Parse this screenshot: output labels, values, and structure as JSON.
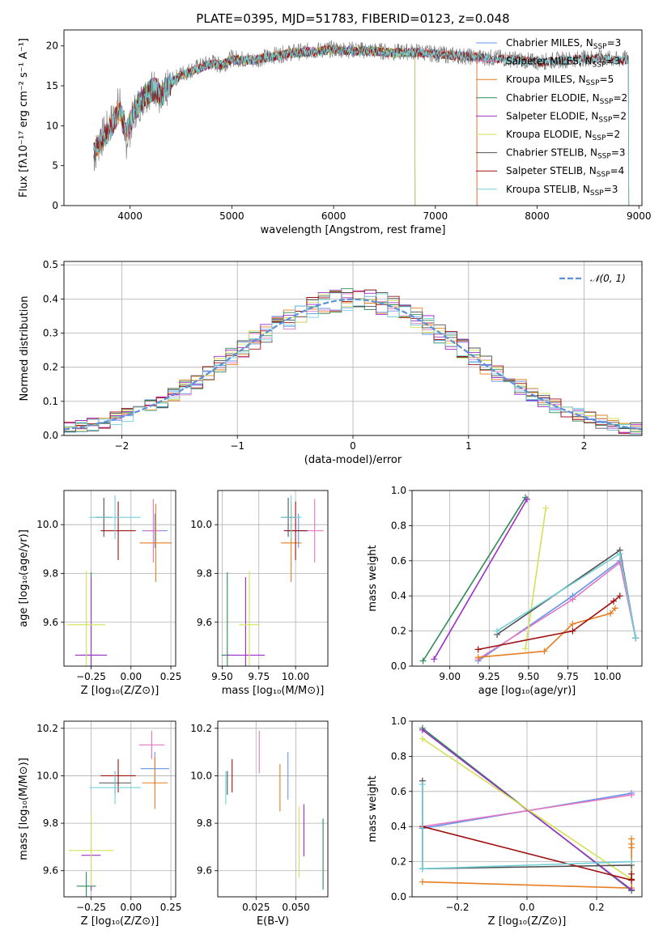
{
  "colors": {
    "Chabrier MILES": "#6495ed",
    "Salpeter MILES": "#e377c2",
    "Kroupa MILES": "#e67e22",
    "Chabrier ELODIE": "#2e8b57",
    "Salpeter ELODIE": "#9b30c8",
    "Kroupa ELODIE": "#d4e157",
    "Chabrier STELIB": "#505050",
    "Salpeter STELIB": "#a01010",
    "Kroupa STELIB": "#70d0d8"
  },
  "chart_data": [
    {
      "id": "spectrum",
      "type": "line",
      "title": "PLATE=0395, MJD=51783, FIBERID=0123, z=0.048",
      "xlabel": "wavelength [Angstrom, rest frame]",
      "ylabel": "Flux [fλ10⁻¹⁷ erg cm⁻² s⁻¹ A⁻¹]",
      "xlim": [
        3350,
        9030
      ],
      "ylim": [
        0,
        22
      ],
      "xticks": [
        4000,
        5000,
        6000,
        7000,
        8000,
        9000
      ],
      "yticks": [
        0,
        5,
        10,
        15,
        20
      ],
      "legend_position": "top-right",
      "data_series": {
        "name": "data",
        "color": "#808080",
        "x": [
          3640,
          3700,
          3800,
          3900,
          3960,
          4050,
          4150,
          4250,
          4300,
          4400,
          4500,
          4600,
          4700,
          4800,
          4900,
          5000,
          5200,
          5400,
          5600,
          5800,
          6000,
          6200,
          6400,
          6600,
          6800,
          7000,
          7200,
          7400,
          7600,
          7800,
          8000,
          8200,
          8400,
          8600,
          8800,
          8900
        ],
        "y": [
          6,
          8,
          10,
          13,
          8,
          12,
          14,
          15,
          13,
          15.5,
          16.5,
          17,
          17.5,
          18,
          17.5,
          18.5,
          18.2,
          18.8,
          19.2,
          19.4,
          19.6,
          19.5,
          19.4,
          19.2,
          19.3,
          19.0,
          18.8,
          18.6,
          18.5,
          18.3,
          18.0,
          18.2,
          18.4,
          18.6,
          18.2,
          18.5
        ]
      },
      "model_x": [
        3640,
        3700,
        3800,
        3900,
        3960,
        4050,
        4150,
        4250,
        4300,
        4400,
        4500,
        4600,
        4700,
        4800,
        4900,
        5000,
        5200,
        5400,
        5600,
        5800,
        6000,
        6200,
        6400,
        6600,
        6800,
        7000,
        7200,
        7400,
        7600,
        7800,
        8000,
        8200,
        8400,
        8600,
        8800,
        8900
      ],
      "model_y": [
        6.5,
        8,
        9.5,
        12,
        9,
        12,
        13.8,
        14.8,
        13.5,
        15.3,
        16.3,
        16.8,
        17.3,
        17.8,
        17.6,
        18.3,
        18.2,
        18.7,
        19.1,
        19.3,
        19.5,
        19.4,
        19.3,
        19.1,
        19.2,
        19.0,
        18.8,
        18.6,
        18.4,
        18.2,
        18.0,
        18.1,
        18.3,
        18.4,
        18.2,
        18.3
      ],
      "series": [
        {
          "name": "Chabrier MILES, N_SSP=3",
          "label": "Chabrier MILES, N",
          "sub": "SSP",
          "suffix": "=3",
          "range": [
            3640,
            7409
          ]
        },
        {
          "name": "Salpeter MILES, N_SSP=3",
          "label": "Salpeter MILES, N",
          "sub": "SSP",
          "suffix": "=3",
          "range": [
            3640,
            7409
          ]
        },
        {
          "name": "Kroupa MILES, N_SSP=5",
          "label": "Kroupa MILES, N",
          "sub": "SSP",
          "suffix": "=5",
          "range": [
            3640,
            7409
          ]
        },
        {
          "name": "Chabrier ELODIE, N_SSP=2",
          "label": "Chabrier ELODIE, N",
          "sub": "SSP",
          "suffix": "=2",
          "range": [
            3900,
            6800
          ]
        },
        {
          "name": "Salpeter ELODIE, N_SSP=2",
          "label": "Salpeter ELODIE, N",
          "sub": "SSP",
          "suffix": "=2",
          "range": [
            3900,
            6800
          ]
        },
        {
          "name": "Kroupa ELODIE, N_SSP=2",
          "label": "Kroupa ELODIE, N",
          "sub": "SSP",
          "suffix": "=2",
          "range": [
            3900,
            6800
          ]
        },
        {
          "name": "Chabrier STELIB, N_SSP=3",
          "label": "Chabrier STELIB, N",
          "sub": "SSP",
          "suffix": "=3",
          "range": [
            3640,
            8900
          ]
        },
        {
          "name": "Salpeter STELIB, N_SSP=4",
          "label": "Salpeter STELIB, N",
          "sub": "SSP",
          "suffix": "=4",
          "range": [
            3640,
            8900
          ]
        },
        {
          "name": "Kroupa STELIB, N_SSP=3",
          "label": "Kroupa STELIB, N",
          "sub": "SSP",
          "suffix": "=3",
          "range": [
            3640,
            8900
          ]
        }
      ]
    },
    {
      "id": "residuals",
      "type": "histogram",
      "xlabel": "(data-model)/error",
      "ylabel": "Normed distribution",
      "xlim": [
        -2.5,
        2.5
      ],
      "ylim": [
        0,
        0.51
      ],
      "xticks": [
        -2,
        -1,
        0,
        1,
        2
      ],
      "yticks": [
        0.0,
        0.1,
        0.2,
        0.3,
        0.4,
        0.5
      ],
      "grid": true,
      "legend_position": "top-right",
      "reference": {
        "name": "N(0,1)",
        "label": "𝒩(0, 1)",
        "color": "#5b8fd9",
        "style": "dashed"
      },
      "bin_width": 0.1
    },
    {
      "id": "age-vs-Z",
      "type": "errorbar",
      "xlabel": "Z [log₁₀(Z/Z⊙)]",
      "ylabel": "age  [log₁₀(age/yr)]",
      "xlim": [
        -0.42,
        0.28
      ],
      "ylim": [
        9.42,
        10.14
      ],
      "xticks": [
        -0.25,
        0.0,
        0.25
      ],
      "xticklabels": [
        "−0.25",
        "0.00",
        "0.25"
      ],
      "yticks": [
        9.6,
        9.8,
        10.0
      ],
      "grid": true,
      "points": [
        {
          "series": "Chabrier MILES",
          "x": 0.15,
          "xerr": 0.08,
          "y": 9.975,
          "yerr": 0.07
        },
        {
          "series": "Salpeter MILES",
          "x": 0.14,
          "xerr": 0.05,
          "y": 9.975,
          "yerr": 0.13
        },
        {
          "series": "Kroupa MILES",
          "x": 0.155,
          "xerr": 0.1,
          "y": 9.925,
          "yerr": 0.16
        },
        {
          "series": "Chabrier ELODIE",
          "x": -0.25,
          "xerr": 0.06,
          "y": 9.465,
          "yerr": 0.34
        },
        {
          "series": "Salpeter ELODIE",
          "x": -0.25,
          "xerr": 0.1,
          "y": 9.465,
          "yerr": 0.32
        },
        {
          "series": "Kroupa ELODIE",
          "x": -0.28,
          "xerr": 0.12,
          "y": 9.59,
          "yerr": 0.22
        },
        {
          "series": "Chabrier STELIB",
          "x": -0.17,
          "xerr": 0.05,
          "y": 10.03,
          "yerr": 0.08
        },
        {
          "series": "Salpeter STELIB",
          "x": -0.08,
          "xerr": 0.11,
          "y": 9.975,
          "yerr": 0.12
        },
        {
          "series": "Kroupa STELIB",
          "x": -0.1,
          "xerr": 0.16,
          "y": 10.03,
          "yerr": 0.09
        }
      ]
    },
    {
      "id": "age-vs-mass",
      "type": "errorbar",
      "xlabel": "mass [log₁₀(M/M⊙)]",
      "ylabel": "",
      "xlim": [
        9.47,
        10.22
      ],
      "ylim": [
        9.42,
        10.14
      ],
      "xticks": [
        9.5,
        9.75,
        10.0
      ],
      "xticklabels": [
        "9.50",
        "9.75",
        "10.00"
      ],
      "yticks": [
        9.6,
        9.8,
        10.0
      ],
      "grid": true,
      "points": [
        {
          "series": "Chabrier MILES",
          "x": 10.02,
          "xerr": 0.07,
          "y": 9.975,
          "yerr": 0.07
        },
        {
          "series": "Salpeter MILES",
          "x": 10.13,
          "xerr": 0.06,
          "y": 9.975,
          "yerr": 0.13
        },
        {
          "series": "Kroupa MILES",
          "x": 9.97,
          "xerr": 0.07,
          "y": 9.925,
          "yerr": 0.16
        },
        {
          "series": "Chabrier ELODIE",
          "x": 9.535,
          "xerr": 0.04,
          "y": 9.465,
          "yerr": 0.34
        },
        {
          "series": "Salpeter ELODIE",
          "x": 9.66,
          "xerr": 0.13,
          "y": 9.465,
          "yerr": 0.32
        },
        {
          "series": "Kroupa ELODIE",
          "x": 9.685,
          "xerr": 0.07,
          "y": 9.59,
          "yerr": 0.22
        },
        {
          "series": "Chabrier STELIB",
          "x": 9.95,
          "xerr": 0.05,
          "y": 10.03,
          "yerr": 0.08
        },
        {
          "series": "Salpeter STELIB",
          "x": 10.0,
          "xerr": 0.08,
          "y": 9.975,
          "yerr": 0.12
        },
        {
          "series": "Kroupa STELIB",
          "x": 9.97,
          "xerr": 0.07,
          "y": 10.03,
          "yerr": 0.09
        }
      ]
    },
    {
      "id": "mass-weight-vs-age",
      "type": "line",
      "xlabel": "age  [log₁₀(age/yr)]",
      "ylabel": "mass weight",
      "xlim": [
        8.76,
        10.22
      ],
      "ylim": [
        0,
        1.0
      ],
      "xticks": [
        9.0,
        9.25,
        9.5,
        9.75,
        10.0
      ],
      "xticklabels": [
        "9.00",
        "9.25",
        "9.50",
        "9.75",
        "10.00"
      ],
      "yticks": [
        0.0,
        0.2,
        0.4,
        0.6,
        0.8,
        1.0
      ],
      "grid": true,
      "series": [
        {
          "name": "Chabrier MILES",
          "x": [
            9.18,
            9.78,
            10.08,
            10.18
          ],
          "y": [
            0.03,
            0.4,
            0.6,
            0.16
          ]
        },
        {
          "name": "Salpeter MILES",
          "x": [
            9.18,
            9.78,
            10.08,
            10.18
          ],
          "y": [
            0.04,
            0.38,
            0.59,
            0.16
          ]
        },
        {
          "name": "Kroupa MILES",
          "x": [
            9.18,
            9.6,
            9.78,
            10.02,
            10.05
          ],
          "y": [
            0.05,
            0.085,
            0.24,
            0.3,
            0.33
          ]
        },
        {
          "name": "Chabrier ELODIE",
          "x": [
            8.83,
            9.48
          ],
          "y": [
            0.03,
            0.96
          ]
        },
        {
          "name": "Salpeter ELODIE",
          "x": [
            8.9,
            9.49
          ],
          "y": [
            0.04,
            0.95
          ]
        },
        {
          "name": "Kroupa ELODIE",
          "x": [
            9.48,
            9.61
          ],
          "y": [
            0.1,
            0.9
          ]
        },
        {
          "name": "Chabrier STELIB",
          "x": [
            9.3,
            10.08,
            10.18
          ],
          "y": [
            0.18,
            0.66,
            0.16
          ]
        },
        {
          "name": "Salpeter STELIB",
          "x": [
            9.18,
            9.78,
            10.04,
            10.08
          ],
          "y": [
            0.095,
            0.2,
            0.37,
            0.4
          ]
        },
        {
          "name": "Kroupa STELIB",
          "x": [
            9.3,
            10.08,
            10.18
          ],
          "y": [
            0.2,
            0.64,
            0.16
          ]
        }
      ]
    },
    {
      "id": "mass-vs-Z",
      "type": "errorbar",
      "xlabel": "Z [log₁₀(Z/Z⊙)]",
      "ylabel": "mass [log₁₀(M/M⊙)]",
      "xlim": [
        -0.42,
        0.28
      ],
      "ylim": [
        9.49,
        10.23
      ],
      "xticks": [
        -0.25,
        0.0,
        0.25
      ],
      "xticklabels": [
        "−0.25",
        "0.00",
        "0.25"
      ],
      "yticks": [
        9.6,
        9.8,
        10.0,
        10.2
      ],
      "grid": true,
      "points": [
        {
          "series": "Chabrier MILES",
          "x": 0.15,
          "xerr": 0.09,
          "y": 10.03,
          "yerr": 0.07
        },
        {
          "series": "Salpeter MILES",
          "x": 0.13,
          "xerr": 0.08,
          "y": 10.13,
          "yerr": 0.06
        },
        {
          "series": "Kroupa MILES",
          "x": 0.15,
          "xerr": 0.08,
          "y": 9.97,
          "yerr": 0.11
        },
        {
          "series": "Chabrier ELODIE",
          "x": -0.28,
          "xerr": 0.06,
          "y": 9.535,
          "yerr": 0.06
        },
        {
          "series": "Salpeter ELODIE",
          "x": -0.25,
          "xerr": 0.06,
          "y": 9.665,
          "yerr": 0.15
        },
        {
          "series": "Kroupa ELODIE",
          "x": -0.25,
          "xerr": 0.14,
          "y": 9.685,
          "yerr": 0.15
        },
        {
          "series": "Chabrier STELIB",
          "x": -0.1,
          "xerr": 0.1,
          "y": 9.97,
          "yerr": 0.05
        },
        {
          "series": "Salpeter STELIB",
          "x": -0.08,
          "xerr": 0.11,
          "y": 10.0,
          "yerr": 0.07
        },
        {
          "series": "Kroupa STELIB",
          "x": -0.1,
          "xerr": 0.16,
          "y": 9.95,
          "yerr": 0.07
        }
      ]
    },
    {
      "id": "mass-vs-ebv",
      "type": "errorbar",
      "xlabel": "E(B-V)",
      "ylabel": "",
      "xlim": [
        0.001,
        0.07
      ],
      "ylim": [
        9.49,
        10.23
      ],
      "xticks": [
        0.025,
        0.05
      ],
      "xticklabels": [
        "0.025",
        "0.050"
      ],
      "yticks": [
        9.6,
        9.8,
        10.0,
        10.2
      ],
      "grid": true,
      "points": [
        {
          "series": "Chabrier MILES",
          "x": 0.045,
          "xerr": 0.0,
          "y": 10.0,
          "yerr": 0.1
        },
        {
          "series": "Salpeter MILES",
          "x": 0.027,
          "xerr": 0.0,
          "y": 10.1,
          "yerr": 0.09
        },
        {
          "series": "Kroupa MILES",
          "x": 0.04,
          "xerr": 0.0,
          "y": 9.95,
          "yerr": 0.1
        },
        {
          "series": "Chabrier ELODIE",
          "x": 0.067,
          "xerr": 0.0,
          "y": 9.67,
          "yerr": 0.15
        },
        {
          "series": "Salpeter ELODIE",
          "x": 0.055,
          "xerr": 0.0,
          "y": 9.77,
          "yerr": 0.11
        },
        {
          "series": "Kroupa ELODIE",
          "x": 0.052,
          "xerr": 0.0,
          "y": 9.72,
          "yerr": 0.15
        },
        {
          "series": "Chabrier STELIB",
          "x": 0.007,
          "xerr": 0.0,
          "y": 9.97,
          "yerr": 0.05
        },
        {
          "series": "Salpeter STELIB",
          "x": 0.01,
          "xerr": 0.0,
          "y": 10.0,
          "yerr": 0.07
        },
        {
          "series": "Kroupa STELIB",
          "x": 0.006,
          "xerr": 0.0,
          "y": 9.95,
          "yerr": 0.07
        }
      ]
    },
    {
      "id": "mass-weight-vs-Z",
      "type": "line",
      "xlabel": "Z [log₁₀(Z/Z⊙)]",
      "ylabel": "mass weight",
      "xlim": [
        -0.33,
        0.33
      ],
      "ylim": [
        0,
        1.0
      ],
      "xticks": [
        -0.2,
        0.0,
        0.2
      ],
      "xticklabels": [
        "−0.2",
        "0.0",
        "0.2"
      ],
      "yticks": [
        0.0,
        0.2,
        0.4,
        0.6,
        0.8,
        1.0
      ],
      "grid": true,
      "series": [
        {
          "name": "Chabrier MILES",
          "x": [
            -0.3,
            0.3
          ],
          "y": [
            0.39,
            0.59
          ]
        },
        {
          "name": "Salpeter MILES",
          "x": [
            -0.3,
            0.3
          ],
          "y": [
            0.4,
            0.58
          ]
        },
        {
          "name": "Kroupa MILES",
          "x": [
            -0.3,
            0.3,
            0.3,
            0.3,
            0.3
          ],
          "y": [
            0.085,
            0.05,
            0.28,
            0.3,
            0.33
          ]
        },
        {
          "name": "Chabrier ELODIE",
          "x": [
            -0.3,
            0.3
          ],
          "y": [
            0.96,
            0.035
          ]
        },
        {
          "name": "Salpeter ELODIE",
          "x": [
            -0.3,
            0.3
          ],
          "y": [
            0.95,
            0.04
          ]
        },
        {
          "name": "Kroupa ELODIE",
          "x": [
            -0.3,
            0.3
          ],
          "y": [
            0.9,
            0.1
          ]
        },
        {
          "name": "Chabrier STELIB",
          "x": [
            -0.3,
            -0.3,
            0.3
          ],
          "y": [
            0.66,
            0.16,
            0.18
          ]
        },
        {
          "name": "Salpeter STELIB",
          "x": [
            -0.3,
            0.3,
            0.3,
            0.3
          ],
          "y": [
            0.4,
            0.095,
            0.13,
            0.1
          ]
        },
        {
          "name": "Kroupa STELIB",
          "x": [
            -0.3,
            -0.3,
            0.3
          ],
          "y": [
            0.64,
            0.16,
            0.2
          ]
        }
      ]
    }
  ]
}
